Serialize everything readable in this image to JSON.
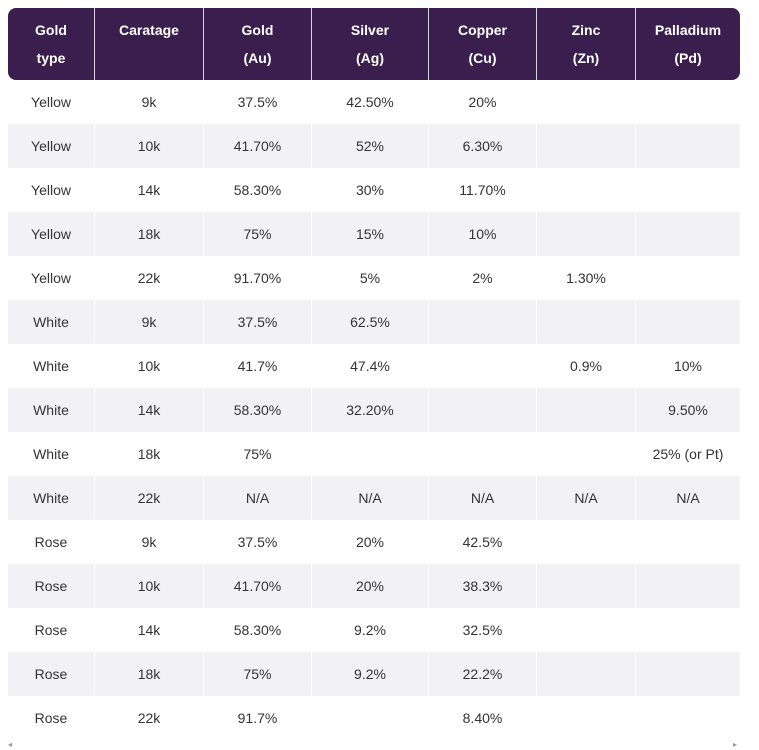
{
  "table": {
    "headers": [
      {
        "line1": "Gold",
        "line2": "type"
      },
      {
        "line1": "Caratage",
        "line2": ""
      },
      {
        "line1": "Gold",
        "line2": "(Au)"
      },
      {
        "line1": "Silver",
        "line2": "(Ag)"
      },
      {
        "line1": "Copper",
        "line2": "(Cu)"
      },
      {
        "line1": "Zinc",
        "line2": "(Zn)"
      },
      {
        "line1": "Palladium",
        "line2": "(Pd)"
      }
    ],
    "rows": [
      [
        "Yellow",
        "9k",
        "37.5%",
        "42.50%",
        "20%",
        "",
        ""
      ],
      [
        "Yellow",
        "10k",
        "41.70%",
        "52%",
        "6.30%",
        "",
        ""
      ],
      [
        "Yellow",
        "14k",
        "58.30%",
        "30%",
        "11.70%",
        "",
        ""
      ],
      [
        "Yellow",
        "18k",
        "75%",
        "15%",
        "10%",
        "",
        ""
      ],
      [
        "Yellow",
        "22k",
        "91.70%",
        "5%",
        "2%",
        "1.30%",
        ""
      ],
      [
        "White",
        "9k",
        "37.5%",
        "62.5%",
        "",
        "",
        ""
      ],
      [
        "White",
        "10k",
        "41.7%",
        "47.4%",
        "",
        "0.9%",
        "10%"
      ],
      [
        "White",
        "14k",
        "58.30%",
        "32.20%",
        "",
        "",
        "9.50%"
      ],
      [
        "White",
        "18k",
        "75%",
        "",
        "",
        "",
        "25% (or Pt)"
      ],
      [
        "White",
        "22k",
        "N/A",
        "N/A",
        "N/A",
        "N/A",
        "N/A"
      ],
      [
        "Rose",
        "9k",
        "37.5%",
        "20%",
        "42.5%",
        "",
        ""
      ],
      [
        "Rose",
        "10k",
        "41.70%",
        "20%",
        "38.3%",
        "",
        ""
      ],
      [
        "Rose",
        "14k",
        "58.30%",
        "9.2%",
        "32.5%",
        "",
        ""
      ],
      [
        "Rose",
        "18k",
        "75%",
        "9.2%",
        "22.2%",
        "",
        ""
      ],
      [
        "Rose",
        "22k",
        "91.7%",
        "",
        "8.40%",
        "",
        ""
      ]
    ]
  },
  "scrollbar": {
    "left_arrow": "◂",
    "right_arrow": "▸"
  },
  "colors": {
    "header_bg": "#3a1f4e",
    "header_text": "#ffffff",
    "stripe_bg": "#f2f1f4",
    "body_text": "#333333"
  }
}
